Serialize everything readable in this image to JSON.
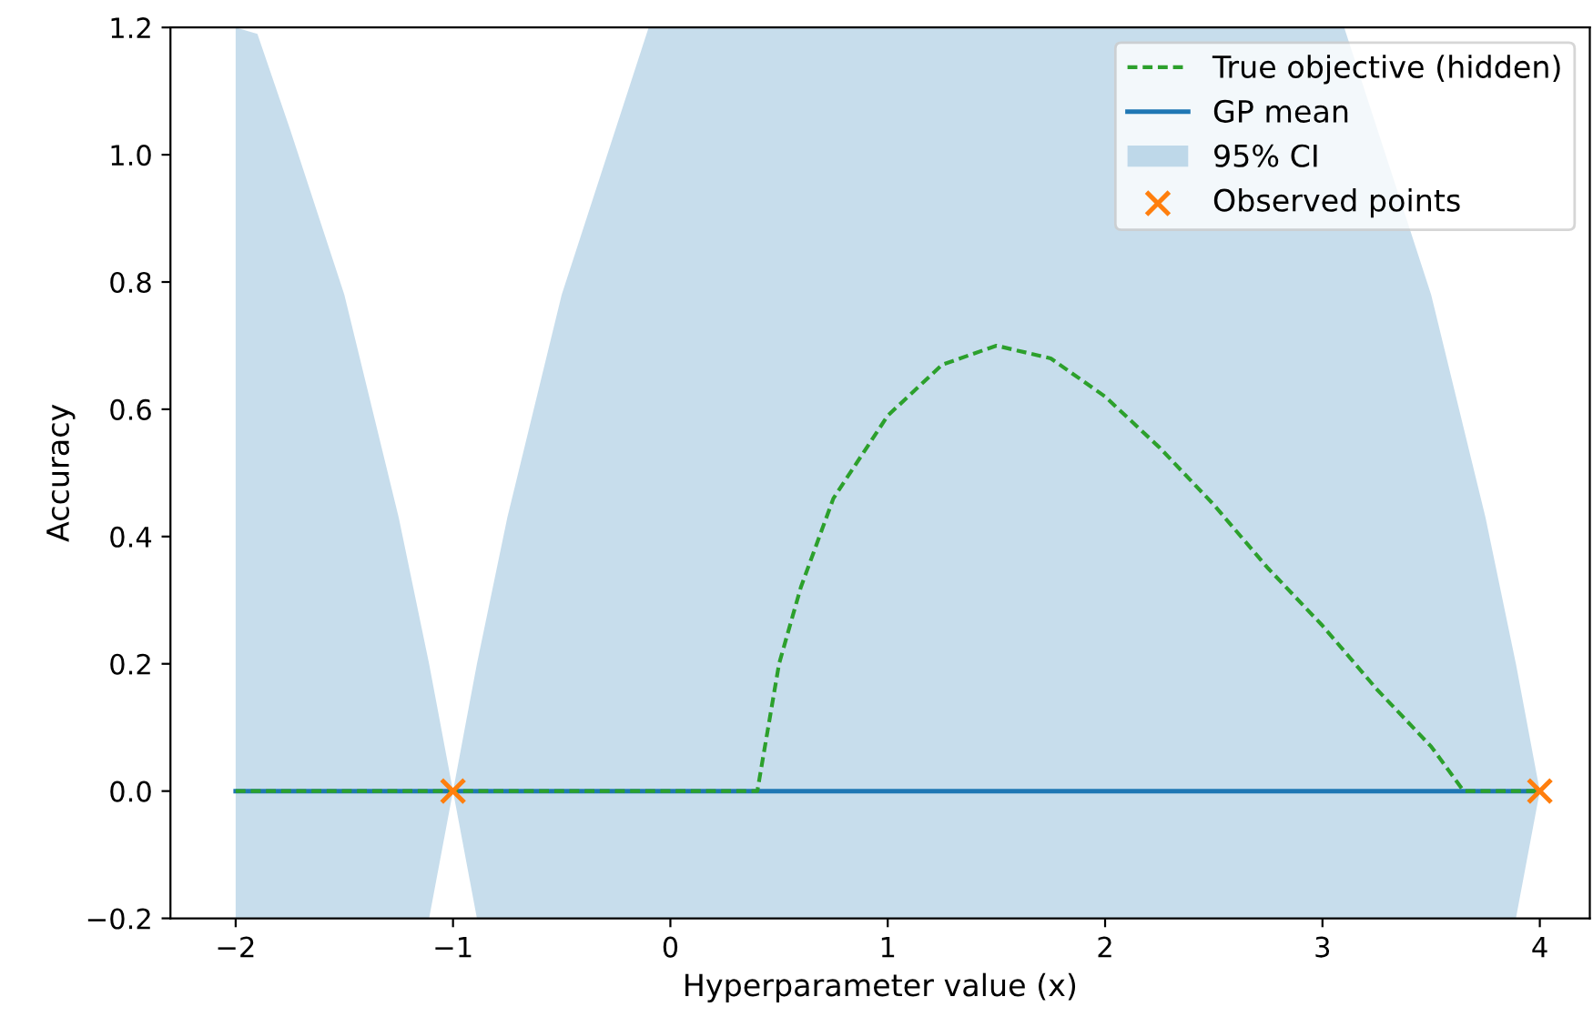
{
  "chart_data": {
    "type": "line",
    "xlabel": "Hyperparameter value (x)",
    "ylabel": "Accuracy",
    "xlim": [
      -2.3,
      4.23
    ],
    "ylim": [
      -0.2,
      1.2
    ],
    "xticks": [
      {
        "value": -2,
        "label": "−2"
      },
      {
        "value": -1,
        "label": "−1"
      },
      0,
      1,
      2,
      3,
      4
    ],
    "yticks": [
      {
        "value": -0.2,
        "label": "−0.2"
      },
      "0.0",
      0.2,
      0.4,
      0.6,
      0.8,
      "1.0",
      1.2
    ],
    "legend": "top right",
    "grid": false,
    "annotations": [
      "95% CI"
    ],
    "series": [
      {
        "name": "True objective (hidden)",
        "type": "line",
        "line_style": "dashed",
        "color": "#2ca02c",
        "x": [
          -2,
          0.4,
          0.45,
          0.5,
          0.6,
          0.75,
          1.0,
          1.25,
          1.5,
          1.75,
          2.0,
          2.25,
          2.5,
          2.75,
          3.0,
          3.25,
          3.5,
          3.65,
          4
        ],
        "values": [
          0,
          0,
          0.1,
          0.2,
          0.32,
          0.46,
          0.59,
          0.67,
          0.7,
          0.68,
          0.62,
          0.54,
          0.45,
          0.35,
          0.26,
          0.16,
          0.07,
          0,
          0
        ]
      },
      {
        "name": "GP mean",
        "line_style": "solid",
        "color": "#1f77b4",
        "x": [
          -2,
          -1.9,
          -1.75,
          -1.5,
          -1.25,
          -1.11,
          -1,
          -0.89,
          -0.75,
          -0.5,
          -0.1,
          0,
          1,
          2,
          3,
          3.1,
          3.5,
          3.75,
          3.89,
          4
        ],
        "values": [
          0,
          0,
          0,
          0,
          0,
          0,
          0,
          0,
          0,
          0,
          0,
          0,
          0,
          0,
          0,
          0,
          0,
          0,
          0,
          0
        ],
        "lower": [
          -0.2,
          -0.2,
          -0.2,
          -0.2,
          -0.2,
          -0.2,
          0,
          -0.2,
          -0.2,
          -0.2,
          -0.2,
          -0.2,
          -0.2,
          -0.2,
          -0.2,
          -0.2,
          -0.2,
          -0.2,
          -0.2,
          0
        ],
        "upper": [
          1.2,
          1.19,
          1.04,
          0.78,
          0.43,
          0.2,
          0,
          0.2,
          0.43,
          0.78,
          1.2,
          1.2,
          1.2,
          1.2,
          1.2,
          1.2,
          0.78,
          0.43,
          0.2,
          0
        ]
      },
      {
        "name": "Observed points",
        "type": "scatter",
        "marker": "cross",
        "color": "#ff7f0e",
        "x": [
          -1,
          4
        ],
        "values": [
          0,
          0
        ]
      }
    ]
  }
}
